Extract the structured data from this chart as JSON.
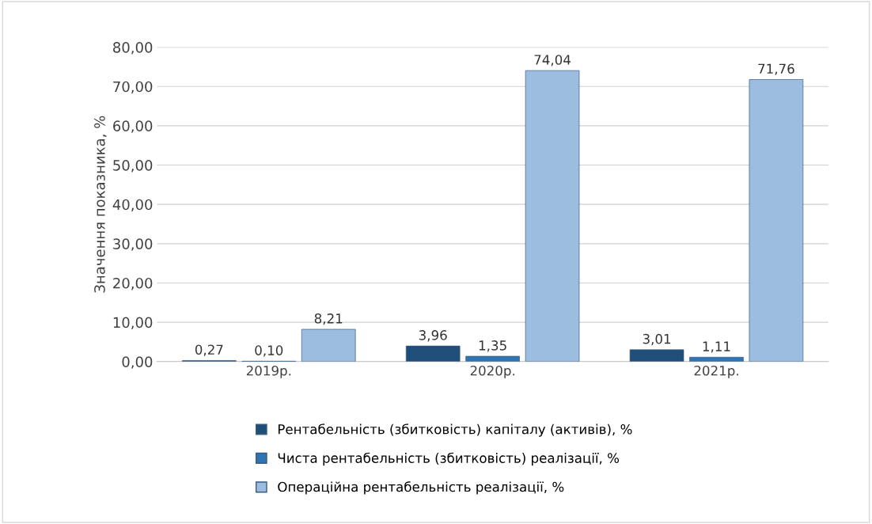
{
  "chart_data": {
    "type": "bar",
    "ylabel": "Значення показника, %",
    "categories": [
      "2019р.",
      "2020р.",
      "2021р."
    ],
    "series": [
      {
        "name": "Рентабельність (збитковість) капіталу (активів), %",
        "color": "#1f4e79",
        "values": [
          0.27,
          3.96,
          3.01
        ],
        "value_labels": [
          "0,27",
          "3,96",
          "3,01"
        ]
      },
      {
        "name": "Чиста рентабельність (збитковість) реалізації, %",
        "color": "#2e75b6",
        "values": [
          0.1,
          1.35,
          1.11
        ],
        "value_labels": [
          "0,10",
          "1,35",
          "1,11"
        ]
      },
      {
        "name": "Операційна рентабельність реалізації, %",
        "color": "#9dbde0",
        "values": [
          8.21,
          74.04,
          71.76
        ],
        "value_labels": [
          "8,21",
          "74,04",
          "71,76"
        ]
      }
    ],
    "ylim": [
      0,
      80
    ],
    "yticks": [
      {
        "value": 0,
        "label": "0,00"
      },
      {
        "value": 10,
        "label": "10,00"
      },
      {
        "value": 20,
        "label": "20,00"
      },
      {
        "value": 30,
        "label": "30,00"
      },
      {
        "value": 40,
        "label": "40,00"
      },
      {
        "value": 50,
        "label": "50,00"
      },
      {
        "value": 60,
        "label": "60,00"
      },
      {
        "value": 70,
        "label": "70,00"
      },
      {
        "value": 80,
        "label": "80,00"
      }
    ],
    "grid": "y",
    "legend": "bottom"
  }
}
